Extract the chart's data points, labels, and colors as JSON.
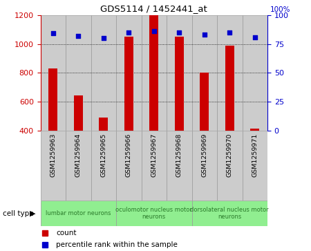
{
  "title": "GDS5114 / 1452441_at",
  "samples": [
    "GSM1259963",
    "GSM1259964",
    "GSM1259965",
    "GSM1259966",
    "GSM1259967",
    "GSM1259968",
    "GSM1259969",
    "GSM1259970",
    "GSM1259971"
  ],
  "counts": [
    830,
    645,
    490,
    1050,
    1200,
    1050,
    800,
    990,
    415
  ],
  "percentile_ranks": [
    84,
    82,
    80,
    85,
    86,
    85,
    83,
    85,
    81
  ],
  "ylim_left": [
    400,
    1200
  ],
  "ylim_right": [
    0,
    100
  ],
  "yticks_left": [
    400,
    600,
    800,
    1000,
    1200
  ],
  "yticks_right": [
    0,
    25,
    50,
    75,
    100
  ],
  "bar_color": "#cc0000",
  "dot_color": "#0000cc",
  "cell_groups": [
    {
      "label": "lumbar motor neurons",
      "start": 0,
      "end": 3,
      "multiline": false
    },
    {
      "label": "oculomotor nucleus motor\nneurons",
      "start": 3,
      "end": 6,
      "multiline": true
    },
    {
      "label": "dorsolateral nucleus motor\nneurons",
      "start": 6,
      "end": 9,
      "multiline": true
    }
  ],
  "cell_group_color": "#90ee90",
  "cell_group_text_color": "#2a7a2a",
  "cell_type_label": "cell type",
  "legend_count_label": "count",
  "legend_percentile_label": "percentile rank within the sample",
  "grid_color": "#000000",
  "col_bg_color": "#cccccc",
  "col_edge_color": "#999999",
  "plot_bg": "#ffffff",
  "right_axis_label": "100%"
}
